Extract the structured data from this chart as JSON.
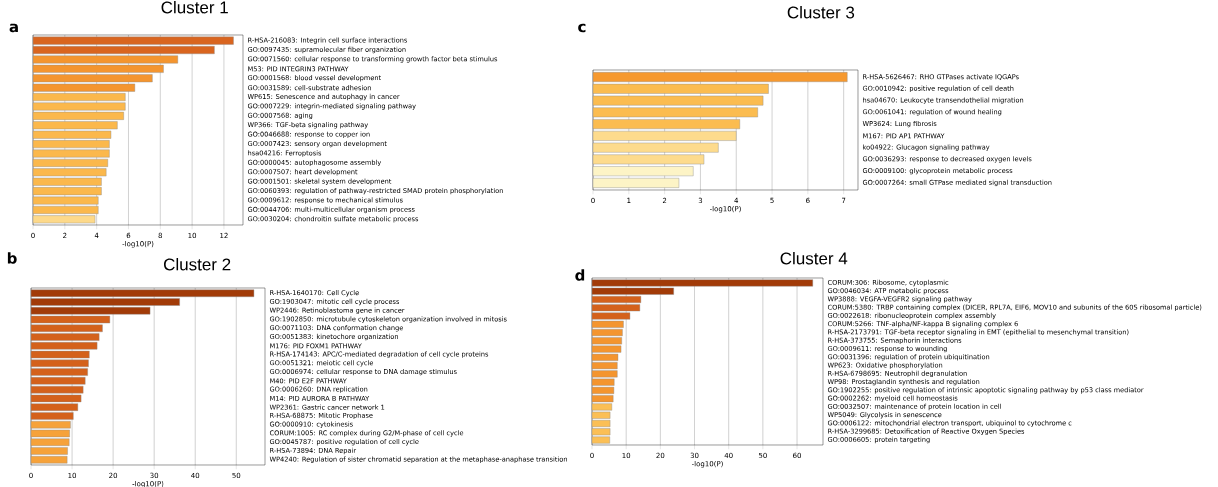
{
  "chart_data": [
    {
      "type": "bar",
      "orientation": "horizontal",
      "title": "Cluster 1",
      "xlabel": "-log10(P)",
      "annotations": [
        "a"
      ],
      "grid": "x",
      "categories": [
        "R-HSA-216083: Integrin cell surface interactions",
        "GO:0097435: supramolecular fiber organization",
        "GO:0071560: cellular response to transforming growth factor beta stimulus",
        "M53: PID INTEGRIN3 PATHWAY",
        "GO:0001568: blood vessel development",
        "GO:0031589: cell-substrate adhesion",
        "WP615: Senescence and autophagy in cancer",
        "GO:0007229: integrin-mediated signaling pathway",
        "GO:0007568: aging",
        "WP366: TGF-beta signaling pathway",
        "GO:0046688: response to copper ion",
        "GO:0007423: sensory organ development",
        "hsa04216: Ferroptosis",
        "GO:0000045: autophagosome assembly",
        "GO:0007507: heart development",
        "GO:0001501: skeletal system development",
        "GO:0060393: regulation of pathway-restricted SMAD protein phosphorylation",
        "GO:0009612: response to mechanical stimulus",
        "GO:0044706: multi-multicellular organism process",
        "GO:0030204: chondroitin sulfate metabolic process"
      ],
      "values": [
        12.6,
        11.4,
        9.1,
        8.2,
        7.5,
        6.4,
        5.8,
        5.8,
        5.7,
        5.3,
        4.9,
        4.8,
        4.8,
        4.7,
        4.6,
        4.3,
        4.3,
        4.1,
        4.1,
        3.9
      ],
      "colors": [
        "#d9651f",
        "#d9651f",
        "#f4952f",
        "#f4952f",
        "#f4952f",
        "#f4952f",
        "#fbb84c",
        "#fbb84c",
        "#fbb84c",
        "#fbb84c",
        "#fbb84c",
        "#fbb84c",
        "#fbb84c",
        "#fbb84c",
        "#fbb84c",
        "#fbb84c",
        "#fbb84c",
        "#fbb84c",
        "#fbb84c",
        "#fdd98a"
      ],
      "xlim": [
        0,
        13.2
      ],
      "xticks": [
        0,
        2,
        4,
        6,
        8,
        10,
        12
      ]
    },
    {
      "type": "bar",
      "orientation": "horizontal",
      "title": "Cluster 2",
      "xlabel": "-log10(P)",
      "annotations": [
        "b"
      ],
      "grid": "x",
      "categories": [
        "R-HSA-1640170: Cell Cycle",
        "GO:1903047: mitotic cell cycle process",
        "WP2446: Retinoblastoma gene in cancer",
        "GO:1902850: microtubule cytoskeleton organization involved in mitosis",
        "GO:0071103: DNA conformation change",
        "GO:0051383: kinetochore organization",
        "M176: PID FOXM1 PATHWAY",
        "R-HSA-174143: APC/C-mediated degradation of cell cycle proteins",
        "GO:0051321: meiotic cell cycle",
        "GO:0006974: cellular response to DNA damage stimulus",
        "M40: PID E2F PATHWAY",
        "GO:0006260: DNA replication",
        "M14: PID AURORA B PATHWAY",
        "WP2361: Gastric cancer network 1",
        "R-HSA-68875: Mitotic Prophase",
        "GO:0000910: cytokinesis",
        "CORUM:1005: RC complex during G2/M-phase of cell cycle",
        "GO:0045787: positive regulation of cell cycle",
        "R-HSA-73894: DNA Repair",
        "WP4240: Regulation of sister chromatid separation at the metaphase-anaphase transition"
      ],
      "values": [
        54.3,
        36.2,
        29.0,
        19.2,
        17.4,
        16.6,
        16.1,
        14.2,
        14.0,
        13.8,
        13.2,
        12.7,
        12.2,
        11.4,
        10.3,
        9.6,
        9.4,
        9.3,
        8.9,
        8.8
      ],
      "colors": [
        "#a23b08",
        "#a23b08",
        "#a23b08",
        "#d4611b",
        "#d4611b",
        "#d4611b",
        "#d4611b",
        "#d4611b",
        "#d4611b",
        "#d4611b",
        "#d4611b",
        "#d4611b",
        "#d4611b",
        "#d4611b",
        "#d4611b",
        "#f6a23a",
        "#f6a23a",
        "#f6a23a",
        "#f6a23a",
        "#f6a23a"
      ],
      "xlim": [
        0,
        57
      ],
      "xticks": [
        0,
        10,
        20,
        30,
        40,
        50
      ]
    },
    {
      "type": "bar",
      "orientation": "horizontal",
      "title": "Cluster 3",
      "xlabel": "-log10(P)",
      "annotations": [
        "c"
      ],
      "grid": "x",
      "categories": [
        "R-HSA-5626467: RHO GTPases activate IQGAPs",
        "GO:0010942: positive regulation of cell death",
        "hsa04670: Leukocyte transendothelial migration",
        "GO:0061041: regulation of wound healing",
        "WP3624: Lung fibrosis",
        "M167: PID AP1 PATHWAY",
        "ko04922: Glucagon signaling pathway",
        "GO:0036293: response to decreased oxygen levels",
        "GO:0009100: glycoprotein metabolic process",
        "GO:0007264: small GTPase mediated signal transduction"
      ],
      "values": [
        7.1,
        4.9,
        4.75,
        4.6,
        4.1,
        4.0,
        3.5,
        3.1,
        2.8,
        2.4
      ],
      "colors": [
        "#f6992f",
        "#fbbc50",
        "#fbbc50",
        "#fbbc50",
        "#fbbc50",
        "#fddb8d",
        "#fddb8d",
        "#fddb8d",
        "#fdf4c6",
        "#fdf4c6"
      ],
      "xlim": [
        0,
        7.4
      ],
      "xticks": [
        0,
        1,
        2,
        3,
        4,
        5,
        6,
        7
      ]
    },
    {
      "type": "bar",
      "orientation": "horizontal",
      "title": "Cluster 4",
      "xlabel": "-log10(P)",
      "annotations": [
        "d"
      ],
      "grid": "x",
      "categories": [
        "CORUM:306: Ribosome, cytoplasmic",
        "GO:0046034: ATP metabolic process",
        "WP3888: VEGFA-VEGFR2 signaling pathway",
        "CORUM:5380: TRBP containing complex (DICER, RPL7A, EIF6, MOV10 and subunits of the 60S ribosomal particle)",
        "GO:0022618: ribonucleoprotein complex assembly",
        "CORUM:5266: TNF-alpha/NF-kappa B signaling complex 6",
        "R-HSA-2173791: TGF-beta receptor signaling in EMT (epithelial to mesenchymal transition)",
        "R-HSA-373755: Semaphorin interactions",
        "GO:0009611: response to wounding",
        "GO:0031396: regulation of protein ubiquitination",
        "WP623: Oxidative phosphorylation",
        "R-HSA-6798695: Neutrophil degranulation",
        "WP98: Prostaglandin synthesis and regulation",
        "GO:1902255: positive regulation of intrinsic apoptotic signaling pathway by p53 class mediator",
        "GO:0002262: myeloid cell homeostasis",
        "GO:0032507: maintenance of protein location in cell",
        "WP5049: Glycolysis in senescence",
        "GO:0006122: mitochondrial electron transport, ubiquinol to cytochrome c",
        "R-HSA-3299685: Detoxification of Reactive Oxygen Species",
        "GO:0006605: protein targeting"
      ],
      "values": [
        64.6,
        23.9,
        14.3,
        14.0,
        11.1,
        9.2,
        8.9,
        8.7,
        8.5,
        7.6,
        7.4,
        7.4,
        6.5,
        6.4,
        6.2,
        5.8,
        5.3,
        5.3,
        5.3,
        5.2
      ],
      "colors": [
        "#a23b08",
        "#a23b08",
        "#d4611b",
        "#d4611b",
        "#d4611b",
        "#f4952f",
        "#f4952f",
        "#f4952f",
        "#f4952f",
        "#f4952f",
        "#f4952f",
        "#f4952f",
        "#f4952f",
        "#f4952f",
        "#f4952f",
        "#fbbf55",
        "#fbbf55",
        "#fbbf55",
        "#fbbf55",
        "#fbbf55"
      ],
      "xlim": [
        0,
        67.6
      ],
      "xticks": [
        0,
        10,
        20,
        30,
        40,
        50,
        60
      ]
    }
  ]
}
